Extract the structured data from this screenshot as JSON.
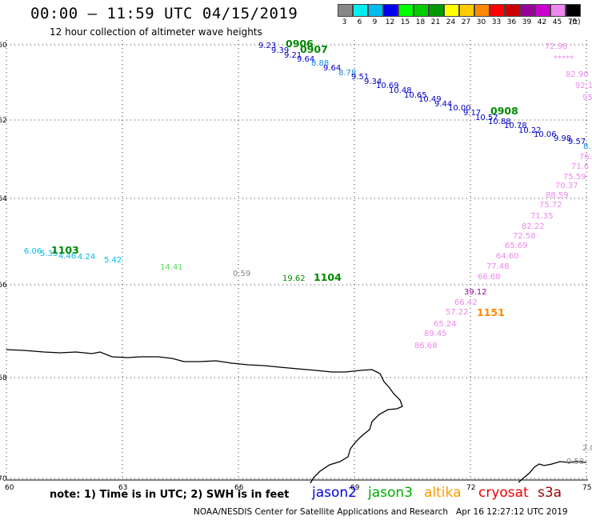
{
  "header": {
    "title": "00:00 – 11:59 UTC 04/15/2019",
    "subtitle": "12 hour collection of altimeter wave heights"
  },
  "color_scale": {
    "labels": [
      "3",
      "6",
      "9",
      "12",
      "15",
      "18",
      "21",
      "24",
      "27",
      "30",
      "33",
      "36",
      "39",
      "42",
      "45",
      "70"
    ],
    "colors": [
      "#888888",
      "#00eeee",
      "#00bbee",
      "#0000ee",
      "#00ff00",
      "#00cc00",
      "#009900",
      "#ffff00",
      "#ffcc00",
      "#ff8800",
      "#ff0000",
      "#cc0000",
      "#990099",
      "#cc00cc",
      "#ee88ee",
      "#000000"
    ],
    "unit": "(ft)"
  },
  "axes": {
    "x_labels": [
      "60",
      "63",
      "66",
      "69",
      "72",
      "75"
    ],
    "y_labels": [
      "-60",
      "-62",
      "-64",
      "-66",
      "-68",
      "-70"
    ]
  },
  "observations": [
    {
      "text": "9.23",
      "c": "#0000cc"
    },
    {
      "text": "9.39",
      "c": "#0000cc"
    },
    {
      "text": "9.21",
      "c": "#0000cc"
    },
    {
      "text": "9.64",
      "c": "#0000cc"
    },
    {
      "text": "0906",
      "c": "#008800",
      "b": 1
    },
    {
      "text": "0907",
      "c": "#008800",
      "b": 1
    },
    {
      "text": "8.88",
      "c": "#1188ee"
    },
    {
      "text": "9.64",
      "c": "#0000cc"
    },
    {
      "text": "8.78",
      "c": "#1188ee"
    },
    {
      "text": "9.51",
      "c": "#0000cc"
    },
    {
      "text": "9.34",
      "c": "#0000cc"
    },
    {
      "text": "10.69",
      "c": "#0000cc"
    },
    {
      "text": "10.48",
      "c": "#0000cc"
    },
    {
      "text": "10.65",
      "c": "#0000cc"
    },
    {
      "text": "10.49",
      "c": "#0000cc"
    },
    {
      "text": "9.44",
      "c": "#0000cc"
    },
    {
      "text": "10.00",
      "c": "#0000cc"
    },
    {
      "text": "9.17",
      "c": "#0000cc"
    },
    {
      "text": "10.57",
      "c": "#0000cc"
    },
    {
      "text": "0908",
      "c": "#008800",
      "b": 1
    },
    {
      "text": "10.88",
      "c": "#0000cc"
    },
    {
      "text": "10.78",
      "c": "#0000cc"
    },
    {
      "text": "10.22",
      "c": "#0000cc"
    },
    {
      "text": "10.06",
      "c": "#0000cc"
    },
    {
      "text": "9.98",
      "c": "#0000cc"
    },
    {
      "text": "9.57",
      "c": "#0000cc"
    },
    {
      "text": "8.",
      "c": "#1188ee"
    },
    {
      "text": "72.98",
      "c": "#ee88ee"
    },
    {
      "text": "*****",
      "c": "#ee88ee"
    },
    {
      "text": "82.90",
      "c": "#ee88ee"
    },
    {
      "text": "92.1",
      "c": "#ee88ee"
    },
    {
      "text": "95",
      "c": "#ee88ee"
    },
    {
      "text": "76.",
      "c": "#ee88ee"
    },
    {
      "text": "71.6",
      "c": "#ee88ee"
    },
    {
      "text": "75.59",
      "c": "#ee88ee"
    },
    {
      "text": "70.37",
      "c": "#ee88ee"
    },
    {
      "text": "88.59",
      "c": "#ee88ee"
    },
    {
      "text": "75.72",
      "c": "#ee88ee"
    },
    {
      "text": "71.35",
      "c": "#ee88ee"
    },
    {
      "text": "82.22",
      "c": "#ee88ee"
    },
    {
      "text": "72.58",
      "c": "#ee88ee"
    },
    {
      "text": "65.69",
      "c": "#ee88ee"
    },
    {
      "text": "64.60",
      "c": "#ee88ee"
    },
    {
      "text": "77.48",
      "c": "#ee88ee"
    },
    {
      "text": "66.68",
      "c": "#ee88ee"
    },
    {
      "text": "39.12",
      "c": "#990099"
    },
    {
      "text": "66.42",
      "c": "#ee88ee"
    },
    {
      "text": "57.22",
      "c": "#ee88ee"
    },
    {
      "text": "1151",
      "c": "#ff8800",
      "b": 1
    },
    {
      "text": "65.24",
      "c": "#ee88ee"
    },
    {
      "text": "89.45",
      "c": "#ee88ee"
    },
    {
      "text": "86.68",
      "c": "#ee88ee"
    },
    {
      "text": "6.06",
      "c": "#00bbee"
    },
    {
      "text": "5.35",
      "c": "#00bbee"
    },
    {
      "text": "4.46",
      "c": "#00bbee"
    },
    {
      "text": "4.24",
      "c": "#00bbee"
    },
    {
      "text": "1103",
      "c": "#008800",
      "b": 1
    },
    {
      "text": "5.42",
      "c": "#00bbee"
    },
    {
      "text": "14.41",
      "c": "#55dd55"
    },
    {
      "text": "0.59",
      "c": "#888888"
    },
    {
      "text": "19.62",
      "c": "#008800"
    },
    {
      "text": "1104",
      "c": "#008800",
      "b": 1
    },
    {
      "text": "2.0",
      "c": "#888888"
    },
    {
      "text": "0.58",
      "c": "#888888"
    }
  ],
  "footer": {
    "note": "note: 1) Time is in UTC; 2) SWH is in feet",
    "satellites": [
      {
        "name": "jason2",
        "color": "#0000ee"
      },
      {
        "name": "jason3",
        "color": "#00aa00"
      },
      {
        "name": "altika",
        "color": "#ff9900"
      },
      {
        "name": "cryosat",
        "color": "#ee0000"
      },
      {
        "name": "s3a",
        "color": "#990000"
      }
    ],
    "credit": "NOAA/NESDIS Center for Satellite Applications and Research",
    "timestamp": "Apr 16 12:27:12 UTC 2019"
  }
}
